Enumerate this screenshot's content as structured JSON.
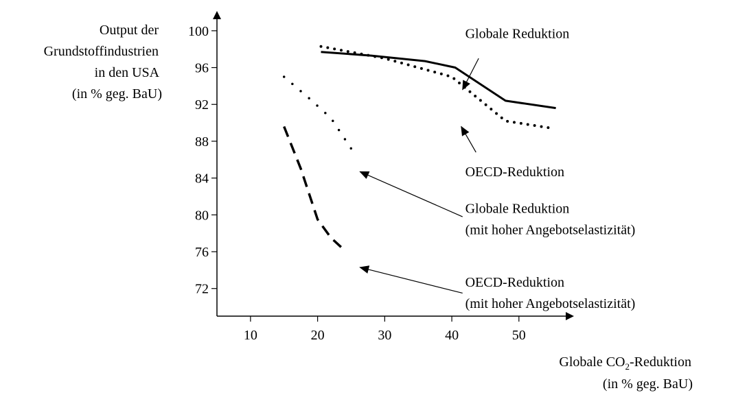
{
  "chart_data": {
    "type": "line",
    "ylabel_lines": [
      "Output der",
      "Grundstoffindustrien",
      "in den USA",
      "(in % geg. BaU)"
    ],
    "xlabel_line1_pre": "Globale CO",
    "xlabel_line1_sub": "2",
    "xlabel_line1_post": "-Reduktion",
    "xlabel_line2": "(in % geg. BaU)",
    "x_ticks": [
      10,
      20,
      30,
      40,
      50
    ],
    "y_ticks": [
      100,
      96,
      92,
      88,
      84,
      80,
      76,
      72
    ],
    "y_tick_labels": [
      "100",
      "96",
      "92",
      "88",
      "84",
      "80",
      "76",
      "72"
    ],
    "xlim": [
      5,
      58
    ],
    "ylim": [
      69,
      102
    ],
    "grid": false,
    "colors": {
      "ink": "#000000"
    },
    "series": [
      {
        "style": "solid",
        "points": [
          [
            20.5,
            97.7
          ],
          [
            28,
            97.3
          ],
          [
            36,
            96.7
          ],
          [
            40.5,
            96.0
          ],
          [
            48,
            92.4
          ],
          [
            55.5,
            91.6
          ]
        ]
      },
      {
        "style": "dotted",
        "points": [
          [
            20.5,
            98.3
          ],
          [
            30,
            97.0
          ],
          [
            40,
            95.0
          ],
          [
            45,
            92.0
          ],
          [
            48,
            90.2
          ],
          [
            55,
            89.4
          ]
        ]
      },
      {
        "style": "dash-dot",
        "points": [
          [
            15,
            95.0
          ],
          [
            19,
            92.5
          ],
          [
            22,
            90.5
          ],
          [
            25,
            87.2
          ]
        ]
      },
      {
        "style": "dashed",
        "points": [
          [
            15,
            89.6
          ],
          [
            17.5,
            85.0
          ],
          [
            20,
            79.5
          ],
          [
            22,
            77.5
          ],
          [
            23.5,
            76.5
          ]
        ]
      }
    ],
    "annotations": [
      {
        "id": "global",
        "lines": [
          "Globale Reduktion"
        ],
        "text_x": 42,
        "text_y": 99.2,
        "arrow_from": [
          44,
          97.0
        ],
        "arrow_to": [
          41.6,
          93.6
        ]
      },
      {
        "id": "oecd",
        "lines": [
          "OECD-Reduktion"
        ],
        "text_x": 42,
        "text_y": 84.2,
        "arrow_from": [
          43.6,
          86.8
        ],
        "arrow_to": [
          41.4,
          89.6
        ]
      },
      {
        "id": "global-elastic",
        "lines": [
          "Globale Reduktion",
          "(mit hoher Angebotselastizität)"
        ],
        "text_x": 42,
        "text_y": 80.2,
        "arrow_from": [
          41.6,
          79.8
        ],
        "arrow_to": [
          26.3,
          84.7
        ]
      },
      {
        "id": "oecd-elastic",
        "lines": [
          "OECD-Reduktion",
          "(mit hoher Angebotselastizität)"
        ],
        "text_x": 42,
        "text_y": 72.2,
        "arrow_from": [
          41.6,
          71.5
        ],
        "arrow_to": [
          26.3,
          74.3
        ]
      }
    ]
  }
}
